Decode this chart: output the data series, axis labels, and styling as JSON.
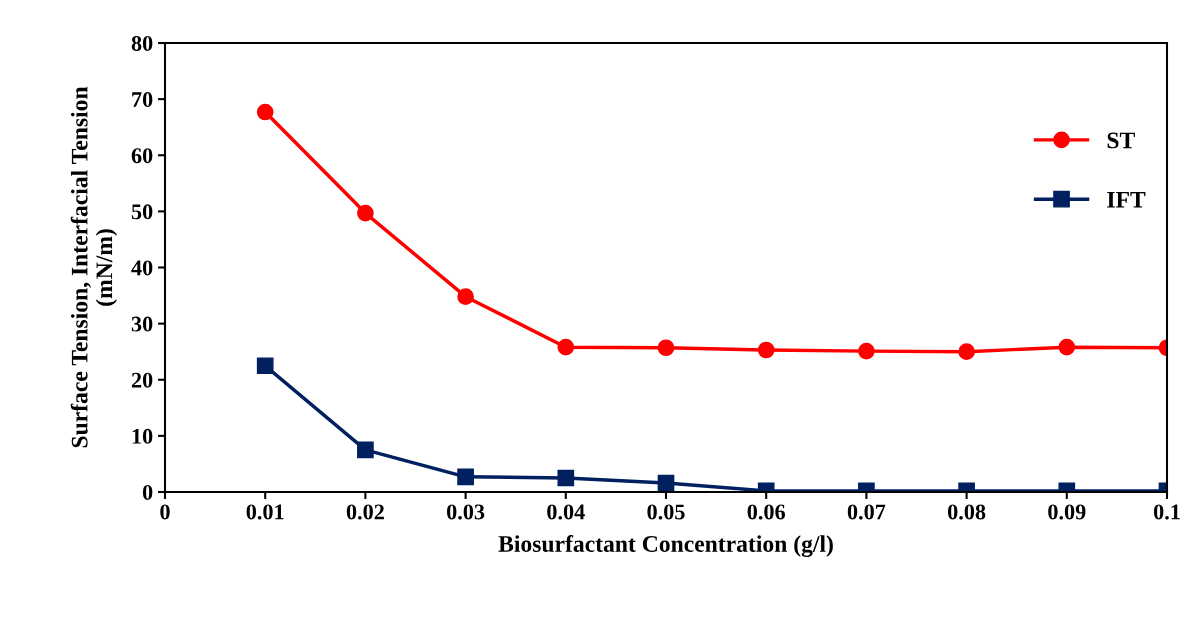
{
  "chart_data": {
    "type": "line",
    "xlabel": "Biosurfactant Concentration (g/l)",
    "ylabel": "Surface Tension, Interfacial Tension\n(mN/m)",
    "x": [
      0.01,
      0.02,
      0.03,
      0.04,
      0.05,
      0.06,
      0.07,
      0.08,
      0.09,
      0.1
    ],
    "series": [
      {
        "name": "ST",
        "color": "#ff0000",
        "marker": "circle",
        "values": [
          67.7,
          49.7,
          34.8,
          25.8,
          25.7,
          25.3,
          25.1,
          25.0,
          25.8,
          25.7
        ]
      },
      {
        "name": "IFT",
        "color": "#002060",
        "marker": "square",
        "values": [
          22.5,
          7.5,
          2.7,
          2.5,
          1.6,
          0.2,
          0.2,
          0.2,
          0.2,
          0.2
        ]
      }
    ],
    "xlim": [
      0,
      0.1
    ],
    "xticks": [
      0,
      0.01,
      0.02,
      0.03,
      0.04,
      0.05,
      0.06,
      0.07,
      0.08,
      0.09,
      0.1
    ],
    "ylim": [
      0,
      80
    ],
    "yticks": [
      0,
      10,
      20,
      30,
      40,
      50,
      60,
      70,
      80
    ],
    "grid": false,
    "legend": "top right",
    "line_style": "solid"
  }
}
